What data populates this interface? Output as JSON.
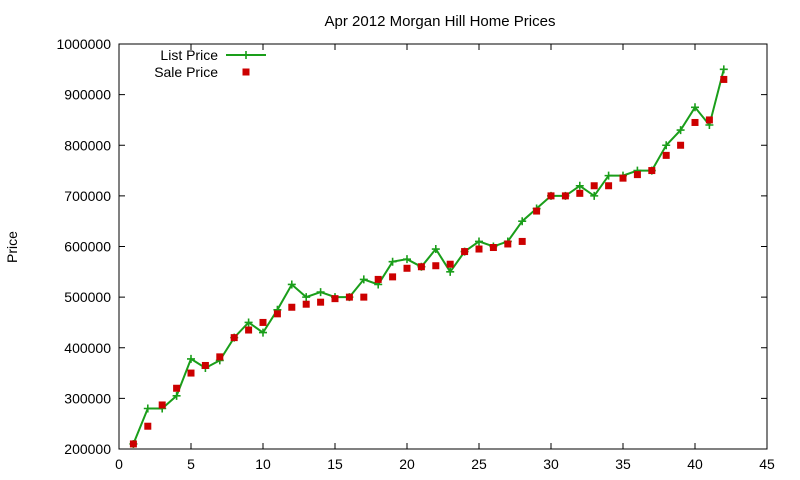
{
  "chart_data": {
    "type": "line",
    "title": "Apr 2012 Morgan Hill Home Prices",
    "xlabel": "",
    "ylabel": "Price",
    "xlim": [
      0,
      45
    ],
    "ylim": [
      200000,
      1000000
    ],
    "xticks": [
      "0",
      "5",
      "10",
      "15",
      "20",
      "25",
      "30",
      "35",
      "40",
      "45"
    ],
    "yticks": [
      "200000",
      "300000",
      "400000",
      "500000",
      "600000",
      "700000",
      "800000",
      "900000",
      "1000000"
    ],
    "grid": false,
    "legend_position": "top-left",
    "series": [
      {
        "name": "List Price",
        "style": "line-plus-markers",
        "color": "#1a9e1a",
        "x": [
          1,
          2,
          3,
          4,
          5,
          6,
          7,
          8,
          9,
          10,
          11,
          12,
          13,
          14,
          15,
          16,
          17,
          18,
          19,
          20,
          21,
          22,
          23,
          24,
          25,
          26,
          27,
          28,
          29,
          30,
          31,
          32,
          33,
          34,
          35,
          36,
          37,
          38,
          39,
          40,
          41,
          42
        ],
        "y": [
          210000,
          280000,
          280000,
          305000,
          378000,
          360000,
          375000,
          420000,
          450000,
          430000,
          475000,
          525000,
          500000,
          510000,
          500000,
          500000,
          535000,
          525000,
          570000,
          575000,
          560000,
          595000,
          550000,
          590000,
          610000,
          600000,
          610000,
          650000,
          675000,
          700000,
          700000,
          720000,
          700000,
          740000,
          740000,
          750000,
          750000,
          800000,
          830000,
          875000,
          840000,
          950000
        ]
      },
      {
        "name": "Sale Price",
        "style": "square-markers",
        "color": "#cc0000",
        "x": [
          1,
          2,
          3,
          4,
          5,
          6,
          7,
          8,
          9,
          10,
          11,
          12,
          13,
          14,
          15,
          16,
          17,
          18,
          19,
          20,
          21,
          22,
          23,
          24,
          25,
          26,
          27,
          28,
          29,
          30,
          31,
          32,
          33,
          34,
          35,
          36,
          37,
          38,
          39,
          40,
          41,
          42
        ],
        "y": [
          210000,
          245000,
          287000,
          320000,
          350000,
          365000,
          382000,
          420000,
          435000,
          450000,
          467000,
          480000,
          486000,
          490000,
          497000,
          500000,
          500000,
          535000,
          540000,
          557000,
          560000,
          562000,
          565000,
          590000,
          595000,
          598000,
          605000,
          610000,
          670000,
          700000,
          700000,
          705000,
          720000,
          720000,
          735000,
          742000,
          750000,
          780000,
          800000,
          845000,
          850000,
          930000
        ]
      }
    ]
  }
}
